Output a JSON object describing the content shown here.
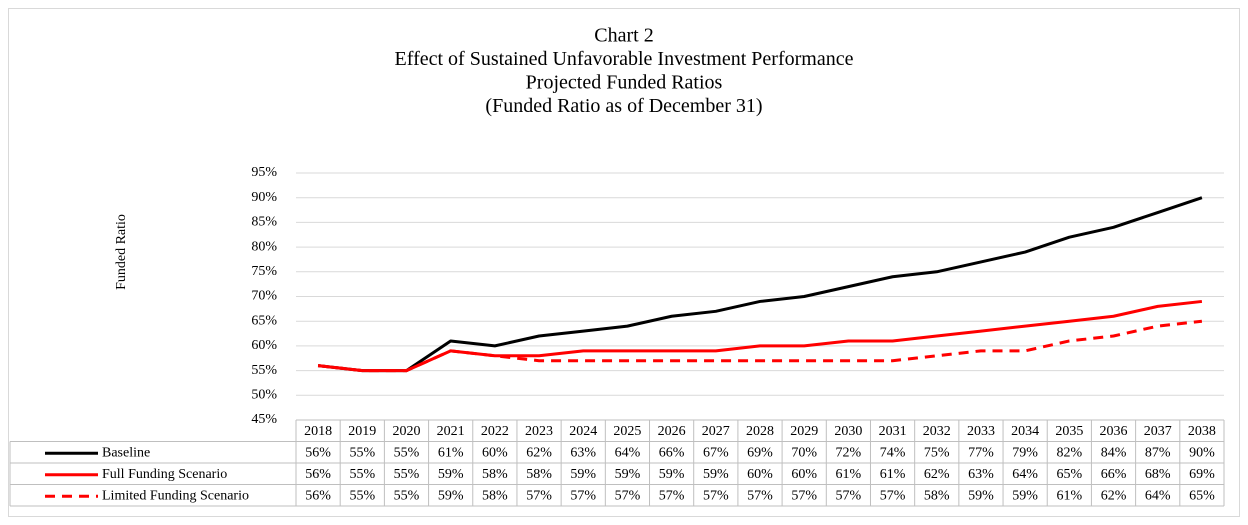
{
  "chart_data": {
    "type": "line",
    "title_lines": [
      "Chart 2",
      "Effect of Sustained Unfavorable Investment Performance",
      "Projected Funded Ratios",
      "(Funded Ratio as of December 31)"
    ],
    "y_label": "Funded Ratio",
    "categories": [
      "2018",
      "2019",
      "2020",
      "2021",
      "2022",
      "2023",
      "2024",
      "2025",
      "2026",
      "2027",
      "2028",
      "2029",
      "2030",
      "2031",
      "2032",
      "2033",
      "2034",
      "2035",
      "2036",
      "2037",
      "2038"
    ],
    "ylim": [
      45,
      95
    ],
    "yticks": [
      {
        "value": 45,
        "label": "45%"
      },
      {
        "value": 50,
        "label": "50%"
      },
      {
        "value": 55,
        "label": "55%"
      },
      {
        "value": 60,
        "label": "60%"
      },
      {
        "value": 65,
        "label": "65%"
      },
      {
        "value": 70,
        "label": "70%"
      },
      {
        "value": 75,
        "label": "75%"
      },
      {
        "value": 80,
        "label": "80%"
      },
      {
        "value": 85,
        "label": "85%"
      },
      {
        "value": 90,
        "label": "90%"
      },
      {
        "value": 95,
        "label": "95%"
      }
    ],
    "grid": true,
    "series": [
      {
        "name": "Baseline",
        "color": "#000000",
        "line_style": "solid",
        "values": [
          56,
          55,
          55,
          61,
          60,
          62,
          63,
          64,
          66,
          67,
          69,
          70,
          72,
          74,
          75,
          77,
          79,
          82,
          84,
          87,
          90
        ],
        "value_labels": [
          "56%",
          "55%",
          "55%",
          "61%",
          "60%",
          "62%",
          "63%",
          "64%",
          "66%",
          "67%",
          "69%",
          "70%",
          "72%",
          "74%",
          "75%",
          "77%",
          "79%",
          "82%",
          "84%",
          "87%",
          "90%"
        ]
      },
      {
        "name": "Full Funding Scenario",
        "color": "#ff0000",
        "line_style": "solid",
        "values": [
          56,
          55,
          55,
          59,
          58,
          58,
          59,
          59,
          59,
          59,
          60,
          60,
          61,
          61,
          62,
          63,
          64,
          65,
          66,
          68,
          69
        ],
        "value_labels": [
          "56%",
          "55%",
          "55%",
          "59%",
          "58%",
          "58%",
          "59%",
          "59%",
          "59%",
          "59%",
          "60%",
          "60%",
          "61%",
          "61%",
          "62%",
          "63%",
          "64%",
          "65%",
          "66%",
          "68%",
          "69%"
        ]
      },
      {
        "name": "Limited Funding Scenario",
        "color": "#ff0000",
        "line_style": "dashed",
        "values": [
          56,
          55,
          55,
          59,
          58,
          57,
          57,
          57,
          57,
          57,
          57,
          57,
          57,
          57,
          58,
          59,
          59,
          61,
          62,
          64,
          65
        ],
        "value_labels": [
          "56%",
          "55%",
          "55%",
          "59%",
          "58%",
          "57%",
          "57%",
          "57%",
          "57%",
          "57%",
          "57%",
          "57%",
          "57%",
          "57%",
          "58%",
          "59%",
          "59%",
          "61%",
          "62%",
          "64%",
          "65%"
        ]
      }
    ]
  }
}
